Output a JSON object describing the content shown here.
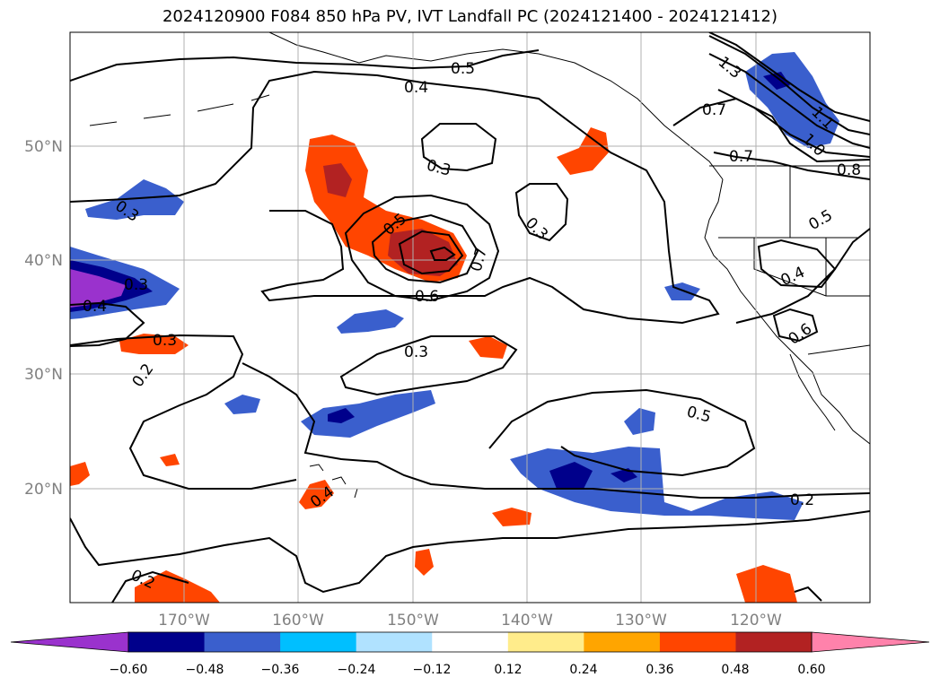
{
  "title": "2024120900 F084 850 hPa PV, IVT Landfall PC (2024121400 - 2024121412)",
  "map": {
    "lon_ticks": [
      "170°W",
      "160°W",
      "150°W",
      "140°W",
      "130°W",
      "120°W"
    ],
    "lat_ticks": [
      "50°N",
      "40°N",
      "30°N",
      "20°N"
    ],
    "gridlines": true
  },
  "contour_labels": [
    "0.5",
    "0.4",
    "0.3",
    "0.3",
    "0.5",
    "0.6",
    "0.7",
    "0.3",
    "0.3",
    "0.3",
    "0.4",
    "0.2",
    "0.3",
    "0.4",
    "0.5",
    "0.2",
    "0.2",
    "0.7",
    "0.7",
    "0.5",
    "0.8",
    "1.0",
    "1.1",
    "1.3",
    "0.4",
    "0.6"
  ],
  "colorbar": {
    "ticks": [
      "−0.60",
      "−0.48",
      "−0.36",
      "−0.24",
      "−0.12",
      "0.12",
      "0.24",
      "0.36",
      "0.48",
      "0.60"
    ],
    "colors": [
      "#9a32cd",
      "#00008b",
      "#3a5fcd",
      "#00bfff",
      "#b0e2ff",
      "#ffffff",
      "#ffec8b",
      "#ffa500",
      "#ff4500",
      "#b22222",
      "#ff82ab"
    ]
  }
}
